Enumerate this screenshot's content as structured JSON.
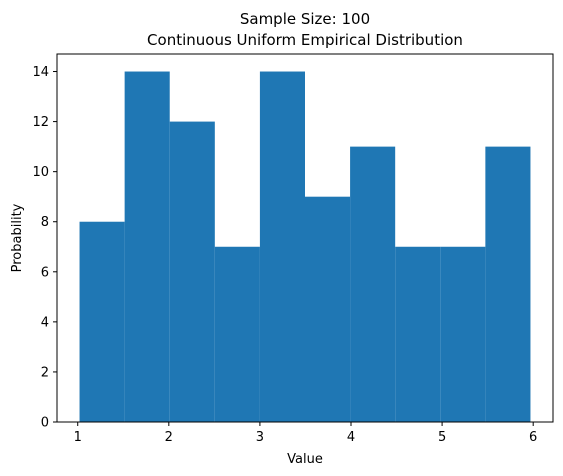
{
  "chart_data": {
    "type": "histogram",
    "title": "Sample Size: 100",
    "subtitle": "Continuous Uniform Empirical Distribution",
    "xlabel": "Value",
    "ylabel": "Probability",
    "bins": [
      1.02,
      1.515,
      2.01,
      2.505,
      3.0,
      3.495,
      3.99,
      4.485,
      4.98,
      5.475,
      5.97
    ],
    "values": [
      8,
      14,
      12,
      7,
      14,
      9,
      11,
      7,
      7,
      11
    ],
    "color": "#1f77b4",
    "xlim": [
      0.7725,
      6.2175
    ],
    "xticks": [
      1,
      2,
      3,
      4,
      5,
      6
    ],
    "ylim": [
      0,
      14.7
    ],
    "yticks": [
      0,
      2,
      4,
      6,
      8,
      10,
      12,
      14
    ],
    "grid": false
  }
}
